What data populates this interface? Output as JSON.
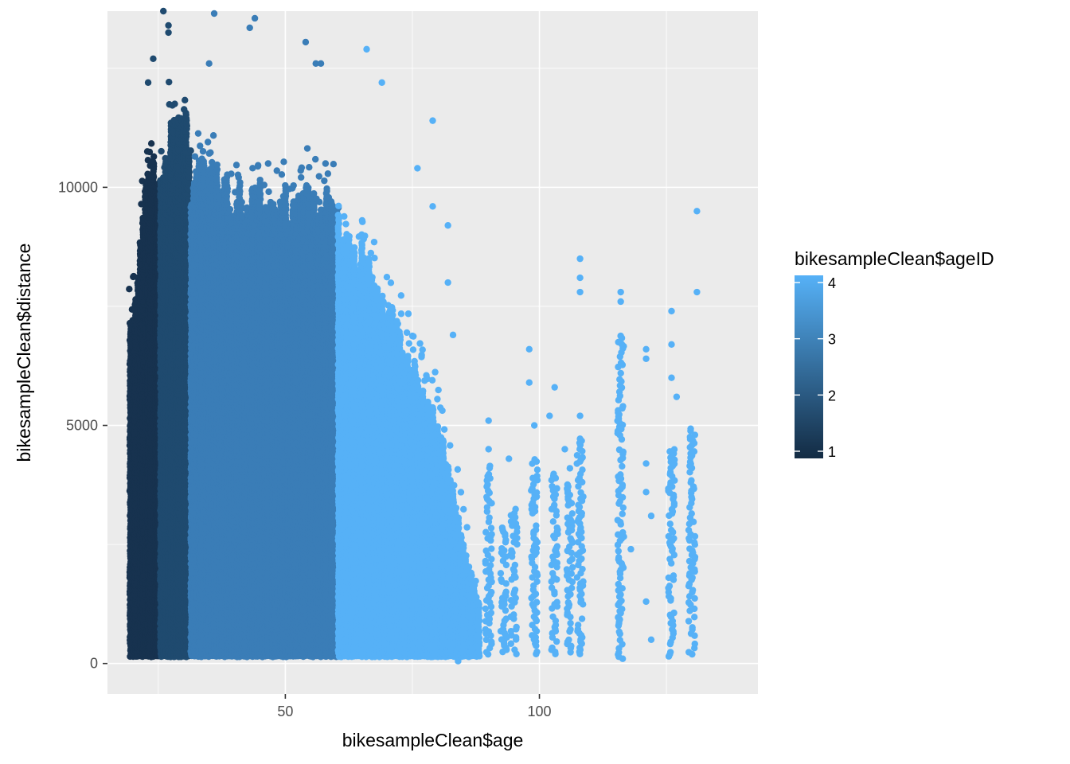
{
  "chart_data": {
    "type": "scatter",
    "title": "",
    "xlabel": "bikesampleClean$age",
    "ylabel": "bikesampleClean$distance",
    "xlim": [
      15,
      143
    ],
    "ylim": [
      -640,
      13700
    ],
    "x_ticks": [
      50,
      100
    ],
    "x_tick_labels": [
      "50",
      "100"
    ],
    "y_ticks": [
      0,
      5000,
      10000
    ],
    "y_tick_labels": [
      "0",
      "5000",
      "10000"
    ],
    "grid": true,
    "panel_background": "#ebebeb",
    "legend": {
      "title": "bikesampleClean$ageID",
      "type": "colorbar",
      "position": "right",
      "range": [
        1,
        4
      ],
      "breaks": [
        1,
        2,
        3,
        4
      ],
      "break_labels": [
        "1",
        "2",
        "3",
        "4"
      ],
      "low_color": "#132b43",
      "high_color": "#56b1f7"
    },
    "groups": [
      {
        "ageID": 1,
        "color": "#17324f",
        "age_range": [
          20,
          25
        ],
        "distance_max_envelope": [
          [
            20,
            7400
          ],
          [
            21,
            9000
          ],
          [
            22,
            9600
          ],
          [
            23,
            10600
          ],
          [
            24,
            10800
          ],
          [
            25,
            10200
          ]
        ]
      },
      {
        "ageID": 2,
        "color": "#1f4a6f",
        "age_range": [
          26,
          31
        ],
        "distance_max_envelope": [
          [
            26,
            10300
          ],
          [
            27,
            11200
          ],
          [
            28,
            11600
          ],
          [
            29,
            11800
          ],
          [
            30,
            11800
          ],
          [
            31,
            11600
          ]
        ]
      },
      {
        "ageID": 3,
        "color": "#3a7db7",
        "age_range": [
          32,
          60
        ],
        "distance_max_envelope": [
          [
            32,
            10700
          ],
          [
            35,
            10600
          ],
          [
            40,
            10300
          ],
          [
            45,
            10200
          ],
          [
            50,
            10100
          ],
          [
            55,
            10100
          ],
          [
            60,
            10000
          ]
        ]
      },
      {
        "ageID": 4,
        "color": "#56b1f7",
        "age_range": [
          61,
          132
        ],
        "distance_max_envelope": [
          [
            61,
            9500
          ],
          [
            65,
            9000
          ],
          [
            70,
            7900
          ],
          [
            75,
            6500
          ],
          [
            80,
            5200
          ],
          [
            83,
            3900
          ],
          [
            86,
            2200
          ],
          [
            88,
            1400
          ]
        ]
      }
    ],
    "outliers": [
      {
        "x": 26,
        "y": 13700,
        "ageID": 2
      },
      {
        "x": 27,
        "y": 13400,
        "ageID": 2
      },
      {
        "x": 27,
        "y": 13250,
        "ageID": 2
      },
      {
        "x": 36,
        "y": 13650,
        "ageID": 3
      },
      {
        "x": 43,
        "y": 13350,
        "ageID": 3
      },
      {
        "x": 44,
        "y": 13550,
        "ageID": 3
      },
      {
        "x": 54,
        "y": 13050,
        "ageID": 3
      },
      {
        "x": 56,
        "y": 12600,
        "ageID": 3
      },
      {
        "x": 57,
        "y": 12600,
        "ageID": 3
      },
      {
        "x": 24,
        "y": 12700,
        "ageID": 2
      },
      {
        "x": 23,
        "y": 12200,
        "ageID": 2
      },
      {
        "x": 35,
        "y": 12600,
        "ageID": 3
      },
      {
        "x": 66,
        "y": 12900,
        "ageID": 4
      },
      {
        "x": 69,
        "y": 12200,
        "ageID": 4
      },
      {
        "x": 79,
        "y": 11400,
        "ageID": 4
      },
      {
        "x": 76,
        "y": 10400,
        "ageID": 4
      },
      {
        "x": 79,
        "y": 9600,
        "ageID": 4
      },
      {
        "x": 82,
        "y": 9200,
        "ageID": 4
      },
      {
        "x": 82,
        "y": 8000,
        "ageID": 4
      },
      {
        "x": 83,
        "y": 6900,
        "ageID": 4
      },
      {
        "x": 98,
        "y": 6600,
        "ageID": 4
      },
      {
        "x": 98,
        "y": 5900,
        "ageID": 4
      },
      {
        "x": 102,
        "y": 5200,
        "ageID": 4
      },
      {
        "x": 103,
        "y": 5800,
        "ageID": 4
      },
      {
        "x": 108,
        "y": 8500,
        "ageID": 4
      },
      {
        "x": 108,
        "y": 8100,
        "ageID": 4
      },
      {
        "x": 108,
        "y": 7800,
        "ageID": 4
      },
      {
        "x": 108,
        "y": 5200,
        "ageID": 4
      },
      {
        "x": 116,
        "y": 7800,
        "ageID": 4
      },
      {
        "x": 116,
        "y": 7600,
        "ageID": 4
      },
      {
        "x": 121,
        "y": 6600,
        "ageID": 4
      },
      {
        "x": 121,
        "y": 6400,
        "ageID": 4
      },
      {
        "x": 126,
        "y": 7400,
        "ageID": 4
      },
      {
        "x": 126,
        "y": 6700,
        "ageID": 4
      },
      {
        "x": 126,
        "y": 6000,
        "ageID": 4
      },
      {
        "x": 127,
        "y": 5600,
        "ageID": 4
      },
      {
        "x": 131,
        "y": 9500,
        "ageID": 4
      },
      {
        "x": 131,
        "y": 7800,
        "ageID": 4
      },
      {
        "x": 90,
        "y": 5100,
        "ageID": 4
      },
      {
        "x": 90,
        "y": 4500,
        "ageID": 4
      },
      {
        "x": 94,
        "y": 4300,
        "ageID": 4
      },
      {
        "x": 99,
        "y": 5000,
        "ageID": 4
      },
      {
        "x": 105,
        "y": 4500,
        "ageID": 4
      },
      {
        "x": 106,
        "y": 4100,
        "ageID": 4
      },
      {
        "x": 121,
        "y": 4200,
        "ageID": 4
      },
      {
        "x": 121,
        "y": 3600,
        "ageID": 4
      },
      {
        "x": 122,
        "y": 3100,
        "ageID": 4
      },
      {
        "x": 118,
        "y": 2400,
        "ageID": 4
      },
      {
        "x": 121,
        "y": 1300,
        "ageID": 4
      },
      {
        "x": 122,
        "y": 500,
        "ageID": 4
      },
      {
        "x": 84,
        "y": 50,
        "ageID": 4
      },
      {
        "x": 86,
        "y": 1000,
        "ageID": 4
      },
      {
        "x": 88,
        "y": 1100,
        "ageID": 4
      }
    ],
    "sparse_columns": [
      {
        "x": 90,
        "ageID": 4,
        "y_range": [
          150,
          4200
        ]
      },
      {
        "x": 93,
        "ageID": 4,
        "y_range": [
          200,
          2900
        ]
      },
      {
        "x": 95,
        "ageID": 4,
        "y_range": [
          200,
          3300
        ]
      },
      {
        "x": 99,
        "ageID": 4,
        "y_range": [
          200,
          4300
        ]
      },
      {
        "x": 103,
        "ageID": 4,
        "y_range": [
          200,
          4000
        ]
      },
      {
        "x": 106,
        "ageID": 4,
        "y_range": [
          150,
          3800
        ]
      },
      {
        "x": 108,
        "ageID": 4,
        "y_range": [
          200,
          4800
        ]
      },
      {
        "x": 116,
        "ageID": 4,
        "y_range": [
          100,
          6900
        ]
      },
      {
        "x": 126,
        "ageID": 4,
        "y_range": [
          150,
          4500
        ]
      },
      {
        "x": 130,
        "ageID": 4,
        "y_range": [
          150,
          5000
        ]
      }
    ]
  }
}
